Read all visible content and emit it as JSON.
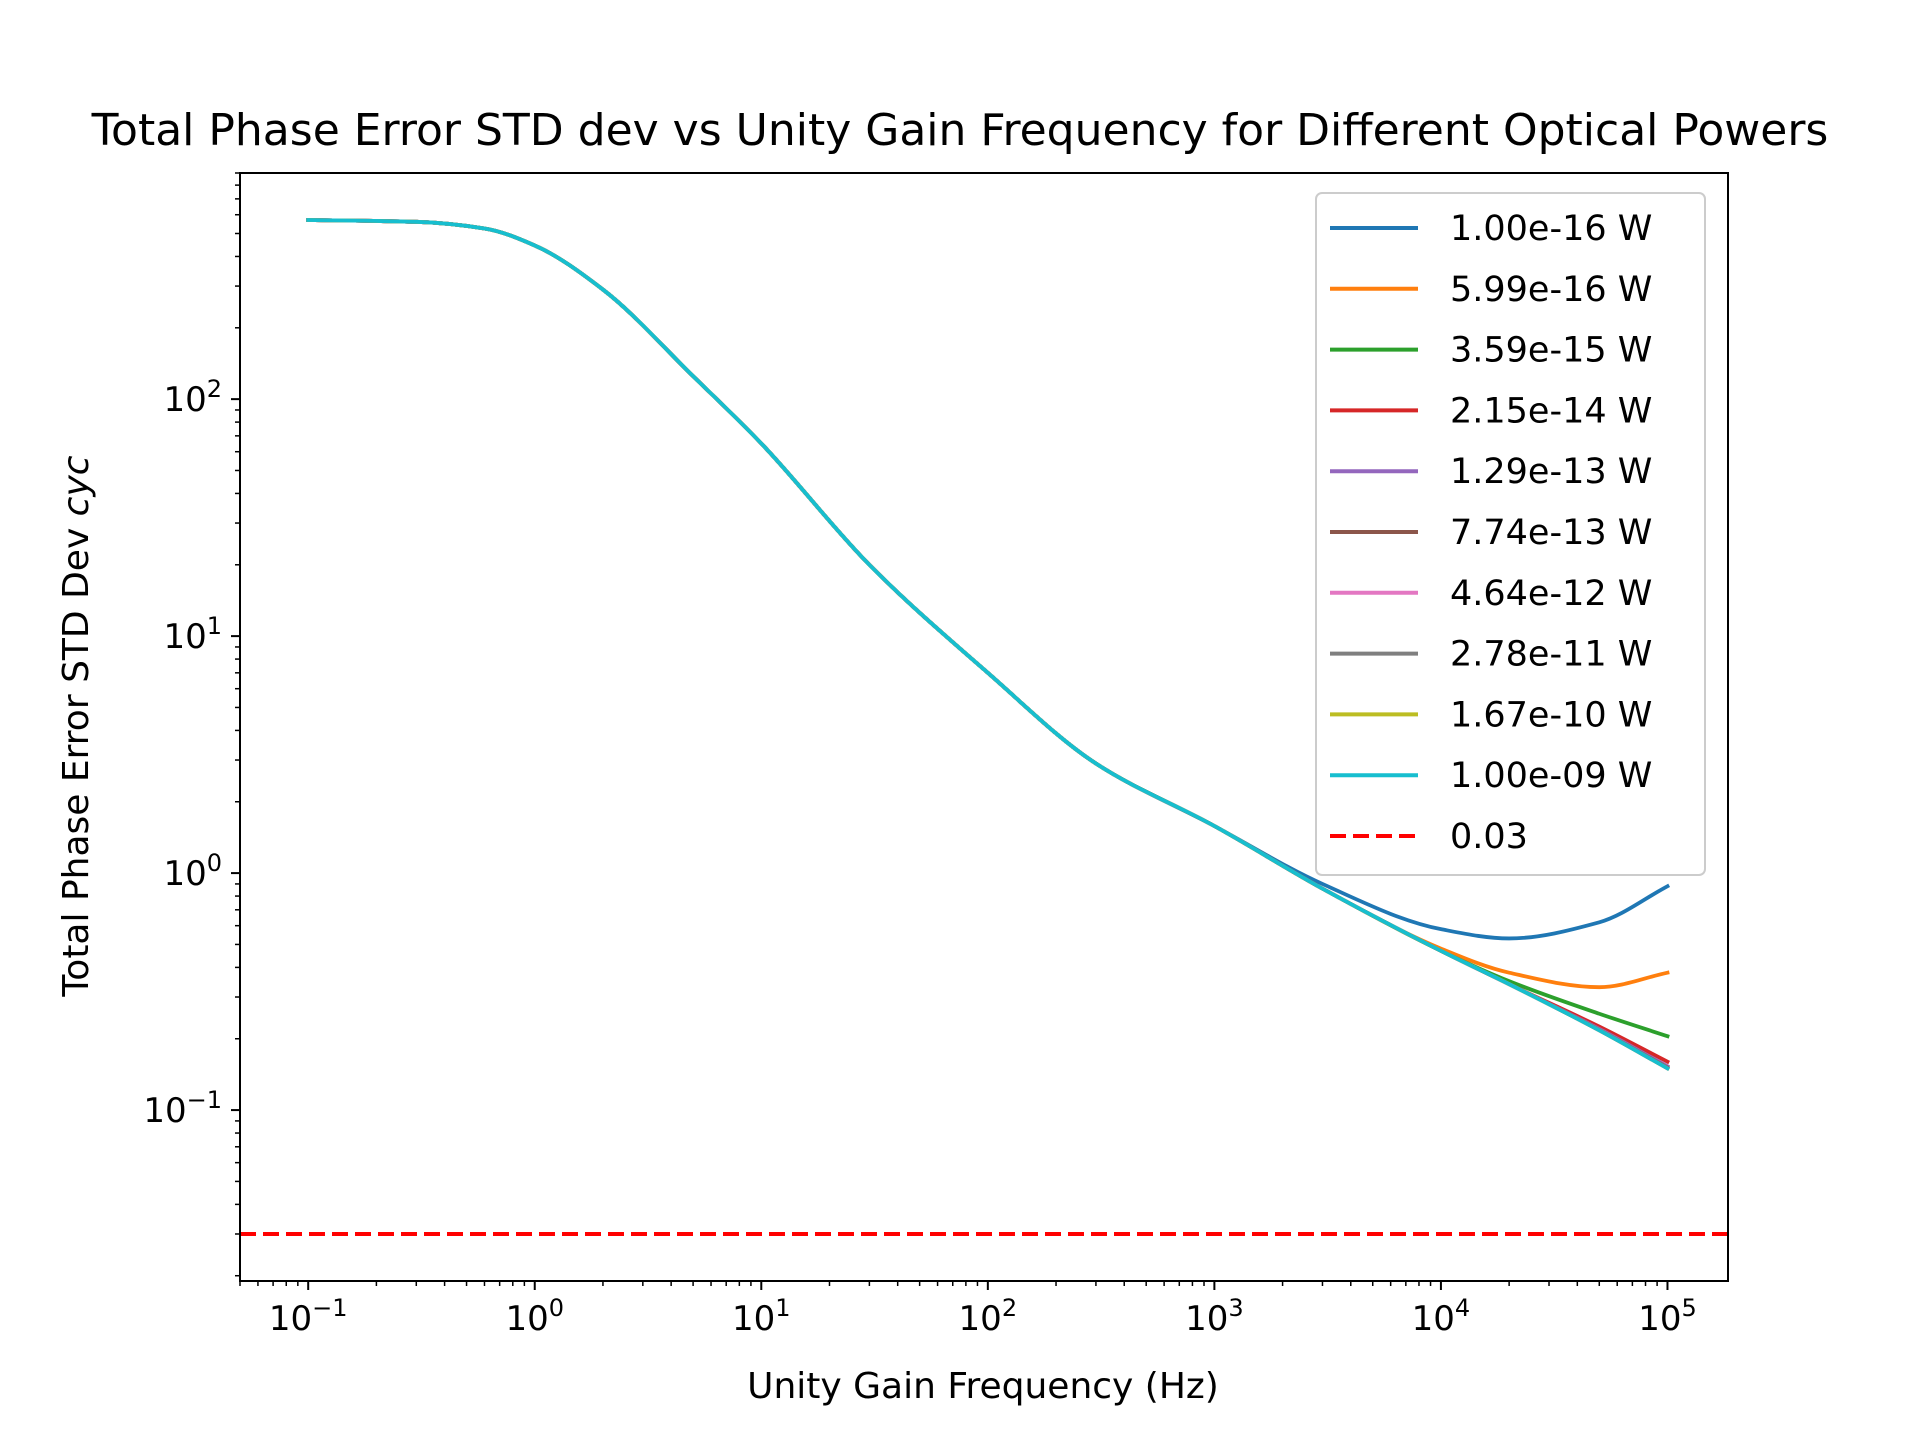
{
  "chart_data": {
    "type": "line",
    "title": "Total Phase Error STD dev vs Unity Gain Frequency for Different Optical Powers",
    "xlabel": "Unity Gain Frequency (Hz)",
    "ylabel_main": "Total Phase Error STD Dev ",
    "ylabel_unit": "cyc",
    "xscale": "log",
    "yscale": "log",
    "xlim": [
      0.05,
      185000
    ],
    "ylim": [
      0.019,
      900
    ],
    "grid": false,
    "legend_position": "upper right",
    "x_ticks": [
      {
        "value": 0.1,
        "base": "10",
        "exp": "−1"
      },
      {
        "value": 1,
        "base": "10",
        "exp": "0"
      },
      {
        "value": 10,
        "base": "10",
        "exp": "1"
      },
      {
        "value": 100,
        "base": "10",
        "exp": "2"
      },
      {
        "value": 1000,
        "base": "10",
        "exp": "3"
      },
      {
        "value": 10000,
        "base": "10",
        "exp": "4"
      },
      {
        "value": 100000,
        "base": "10",
        "exp": "5"
      }
    ],
    "y_ticks": [
      {
        "value": 0.1,
        "base": "10",
        "exp": "−1"
      },
      {
        "value": 1,
        "base": "10",
        "exp": "0"
      },
      {
        "value": 10,
        "base": "10",
        "exp": "1"
      },
      {
        "value": 100,
        "base": "10",
        "exp": "2"
      }
    ],
    "x": [
      0.1,
      0.3,
      0.6,
      1,
      2,
      5,
      10,
      30,
      100,
      300,
      1000,
      3000,
      10000,
      20000,
      50000,
      100000
    ],
    "series": [
      {
        "name": "1.00e-16 W",
        "color": "#1f77b4",
        "values": [
          570,
          560,
          525,
          445,
          290,
          125,
          65,
          20,
          7.0,
          2.9,
          1.58,
          0.9,
          0.58,
          0.53,
          0.62,
          0.88
        ]
      },
      {
        "name": "5.99e-16 W",
        "color": "#ff7f0e",
        "values": [
          570,
          560,
          525,
          445,
          290,
          125,
          65,
          20,
          7.0,
          2.9,
          1.58,
          0.86,
          0.48,
          0.38,
          0.33,
          0.38
        ]
      },
      {
        "name": "3.59e-15 W",
        "color": "#2ca02c",
        "values": [
          570,
          560,
          525,
          445,
          290,
          125,
          65,
          20,
          7.0,
          2.9,
          1.58,
          0.86,
          0.47,
          0.35,
          0.255,
          0.205
        ]
      },
      {
        "name": "2.15e-14 W",
        "color": "#d62728",
        "values": [
          570,
          560,
          525,
          445,
          290,
          125,
          65,
          20,
          7.0,
          2.9,
          1.58,
          0.86,
          0.47,
          0.34,
          0.225,
          0.16
        ]
      },
      {
        "name": "1.29e-13 W",
        "color": "#9467bd",
        "values": [
          570,
          560,
          525,
          445,
          290,
          125,
          65,
          20,
          7.0,
          2.9,
          1.58,
          0.86,
          0.47,
          0.34,
          0.22,
          0.153
        ]
      },
      {
        "name": "7.74e-13 W",
        "color": "#8c564b",
        "values": [
          570,
          560,
          525,
          445,
          290,
          125,
          65,
          20,
          7.0,
          2.9,
          1.58,
          0.86,
          0.47,
          0.34,
          0.218,
          0.151
        ]
      },
      {
        "name": "4.64e-12 W",
        "color": "#e377c2",
        "values": [
          570,
          560,
          525,
          445,
          290,
          125,
          65,
          20,
          7.0,
          2.9,
          1.58,
          0.86,
          0.47,
          0.34,
          0.217,
          0.15
        ]
      },
      {
        "name": "2.78e-11 W",
        "color": "#7f7f7f",
        "values": [
          570,
          560,
          525,
          445,
          290,
          125,
          65,
          20,
          7.0,
          2.9,
          1.58,
          0.86,
          0.47,
          0.34,
          0.217,
          0.15
        ]
      },
      {
        "name": "1.67e-10 W",
        "color": "#bcbd22",
        "values": [
          570,
          560,
          525,
          445,
          290,
          125,
          65,
          20,
          7.0,
          2.9,
          1.58,
          0.86,
          0.47,
          0.34,
          0.217,
          0.15
        ]
      },
      {
        "name": "1.00e-09 W",
        "color": "#17becf",
        "values": [
          570,
          560,
          525,
          445,
          290,
          125,
          65,
          20,
          7.0,
          2.9,
          1.58,
          0.86,
          0.47,
          0.34,
          0.217,
          0.15
        ]
      }
    ],
    "threshold": {
      "name": "0.03",
      "value": 0.03,
      "color": "#ff0000",
      "style": "dashed"
    }
  }
}
